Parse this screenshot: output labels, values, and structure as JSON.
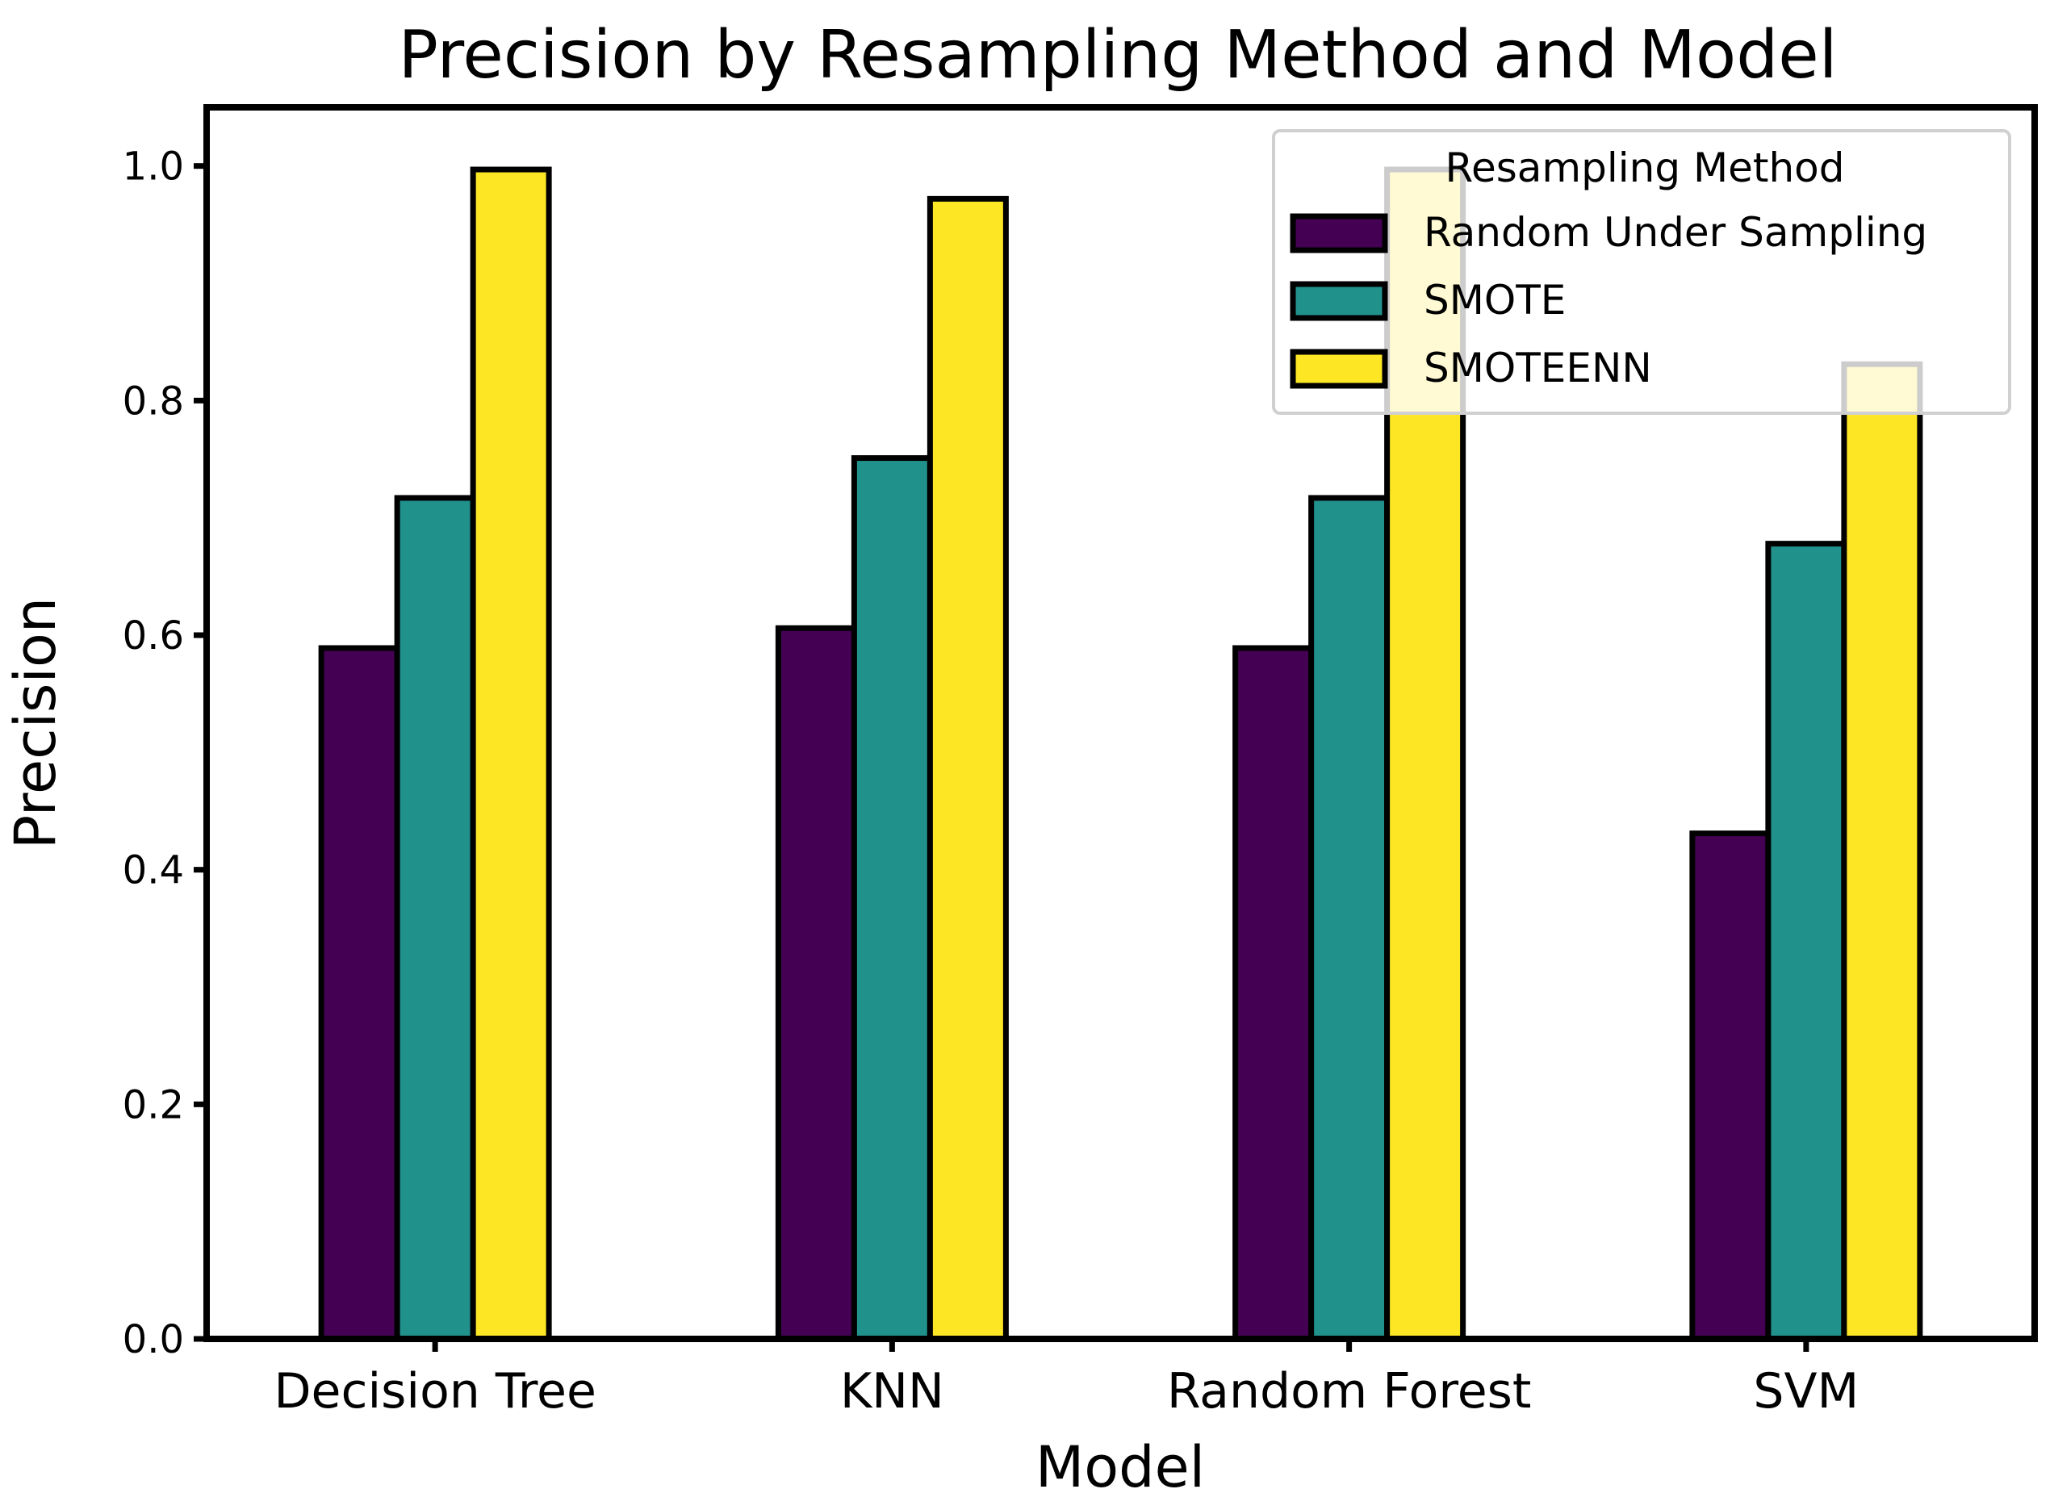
{
  "chart_data": {
    "type": "bar",
    "title": "Precision by Resampling Method and Model",
    "xlabel": "Model",
    "ylabel": "Precision",
    "categories": [
      "Decision Tree",
      "KNN",
      "Random Forest",
      "SVM"
    ],
    "series": [
      {
        "name": "Random Under Sampling",
        "color": "#440154",
        "values": [
          0.589,
          0.606,
          0.589,
          0.431
        ]
      },
      {
        "name": "SMOTE",
        "color": "#21918c",
        "values": [
          0.717,
          0.751,
          0.717,
          0.678
        ]
      },
      {
        "name": "SMOTEENN",
        "color": "#fde725",
        "values": [
          0.997,
          0.972,
          0.997,
          0.831
        ]
      }
    ],
    "ylim": [
      0,
      1.05
    ],
    "yticks": [
      "0.0",
      "0.2",
      "0.4",
      "0.6",
      "0.8",
      "1.0"
    ],
    "grid": false,
    "legend": {
      "title": "Resampling Method",
      "position": "upper right"
    }
  }
}
